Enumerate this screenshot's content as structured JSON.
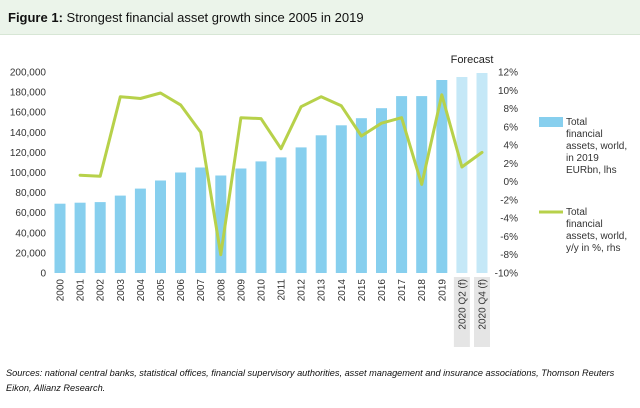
{
  "figure": {
    "label": "Figure 1:",
    "title": "Strongest financial asset growth since 2005 in 2019"
  },
  "chart_data": {
    "type": "bar",
    "categories": [
      "2000",
      "2001",
      "2002",
      "2003",
      "2004",
      "2005",
      "2006",
      "2007",
      "2008",
      "2009",
      "2010",
      "2011",
      "2012",
      "2013",
      "2014",
      "2015",
      "2016",
      "2017",
      "2018",
      "2019",
      "2020 Q2 (f)",
      "2020 Q4 (f)"
    ],
    "forecast_categories": [
      "2020 Q2 (f)",
      "2020 Q4 (f)"
    ],
    "annotation": "Forecast",
    "y_left": {
      "lim": [
        0,
        200000
      ],
      "ticks": [
        "0",
        "20,000",
        "40,000",
        "60,000",
        "80,000",
        "100,000",
        "120,000",
        "140,000",
        "160,000",
        "180,000",
        "200,000"
      ]
    },
    "y_right": {
      "lim": [
        -10,
        12
      ],
      "ticks": [
        "-10%",
        "-8%",
        "-6%",
        "-4%",
        "-2%",
        "0%",
        "2%",
        "4%",
        "6%",
        "8%",
        "10%",
        "12%"
      ]
    },
    "series": [
      {
        "name": "Total financial assets, world, in 2019 EURbn, lhs",
        "legend_lines": [
          "Total",
          "financial",
          "assets, world,",
          "in 2019",
          "EURbn, lhs"
        ],
        "type": "bar",
        "axis": "left",
        "color": "#87cfee",
        "forecast_color": "#c5e8f7",
        "values": [
          69000,
          70000,
          70500,
          77000,
          84000,
          92000,
          100000,
          105000,
          97000,
          104000,
          111000,
          115000,
          125000,
          137000,
          147000,
          154000,
          164000,
          176000,
          176000,
          192000,
          195000,
          199000
        ]
      },
      {
        "name": "Total financial assets, world, y/y in %, rhs",
        "legend_lines": [
          "Total",
          "financial",
          "assets, world,",
          "y/y in %, rhs"
        ],
        "type": "line",
        "axis": "right",
        "color": "#b7d14a",
        "values": [
          null,
          0.7,
          0.6,
          9.3,
          9.1,
          9.7,
          8.4,
          5.4,
          -8.0,
          7.0,
          6.9,
          3.6,
          8.2,
          9.3,
          8.3,
          5.0,
          6.4,
          7.0,
          -0.3,
          9.5,
          1.6,
          3.2
        ]
      }
    ]
  },
  "source": "Sources: national central banks, statistical offices, financial supervisory authorities, asset management and insurance associations, Thomson Reuters Eikon, Allianz Research."
}
